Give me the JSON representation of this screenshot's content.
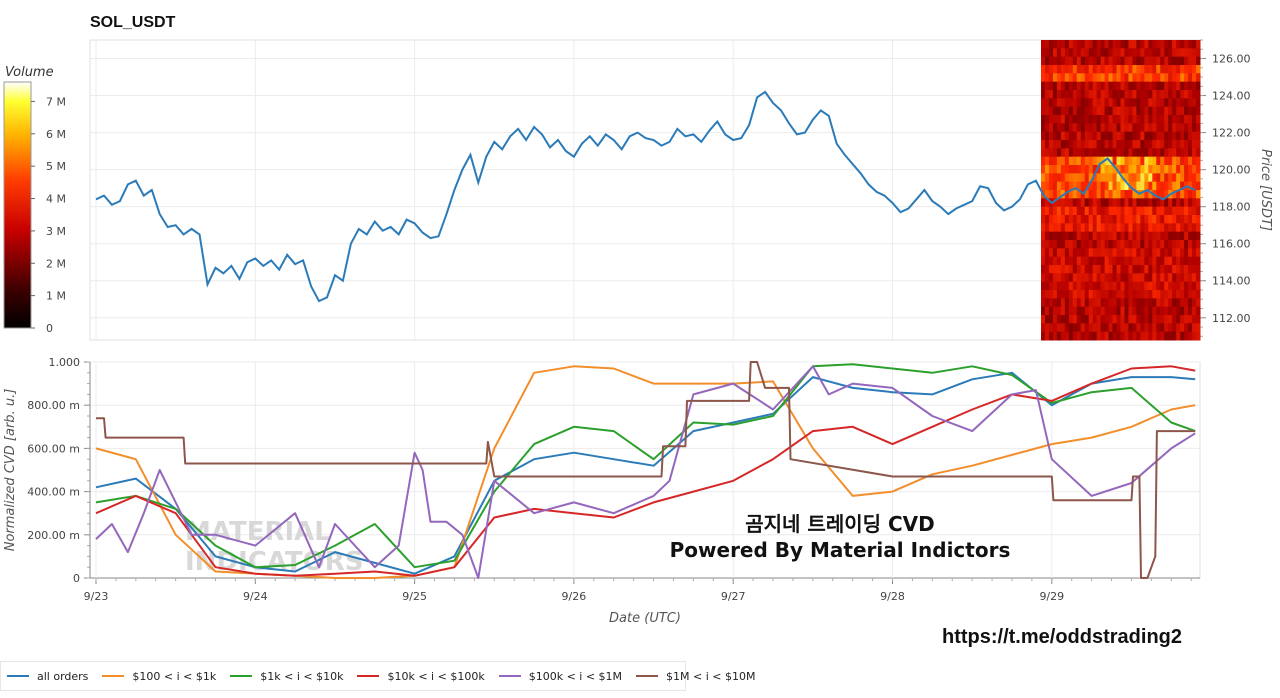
{
  "chart_data": [
    {
      "type": "line",
      "title": "SOL_USDT",
      "y2label": "Price [USDT]",
      "ylim": [
        110.8,
        127.0
      ],
      "yticks": [
        "112.00",
        "114.00",
        "116.00",
        "118.00",
        "120.00",
        "122.00",
        "124.00",
        "126.00"
      ],
      "colorbar": {
        "label": "Volume",
        "ticks": [
          "0",
          "1 M",
          "2 M",
          "3 M",
          "4 M",
          "5 M",
          "6 M",
          "7 M"
        ],
        "range": [
          0,
          7600000
        ]
      },
      "x_days": [
        23,
        30
      ],
      "series": [
        {
          "name": "",
          "color": "#2b7bb9",
          "x": [
            23.0,
            23.05,
            23.1,
            23.15,
            23.2,
            23.25,
            23.3,
            23.35,
            23.4,
            23.45,
            23.5,
            23.55,
            23.6,
            23.65,
            23.7,
            23.75,
            23.8,
            23.85,
            23.9,
            23.95,
            24.0,
            24.05,
            24.1,
            24.15,
            24.2,
            24.25,
            24.3,
            24.35,
            24.4,
            24.45,
            24.5,
            24.55,
            24.6,
            24.65,
            24.7,
            24.75,
            24.8,
            24.85,
            24.9,
            24.95,
            25.0,
            25.05,
            25.1,
            25.15,
            25.2,
            25.25,
            25.3,
            25.35,
            25.4,
            25.45,
            25.5,
            25.55,
            25.6,
            25.65,
            25.7,
            25.75,
            25.8,
            25.85,
            25.9,
            25.95,
            26.0,
            26.05,
            26.1,
            26.15,
            26.2,
            26.25,
            26.3,
            26.35,
            26.4,
            26.45,
            26.5,
            26.55,
            26.6,
            26.65,
            26.7,
            26.75,
            26.8,
            26.85,
            26.9,
            26.95,
            27.0,
            27.05,
            27.1,
            27.15,
            27.2,
            27.25,
            27.3,
            27.35,
            27.4,
            27.45,
            27.5,
            27.55,
            27.6,
            27.65,
            27.7,
            27.75,
            27.8,
            27.85,
            27.9,
            27.95,
            28.0,
            28.05,
            28.1,
            28.15,
            28.2,
            28.25,
            28.3,
            28.35,
            28.4,
            28.45,
            28.5,
            28.55,
            28.6,
            28.65,
            28.7,
            28.75,
            28.8,
            28.85,
            28.9,
            28.95,
            29.0,
            29.05,
            29.1,
            29.15,
            29.2,
            29.25,
            29.3,
            29.35,
            29.4,
            29.45,
            29.5,
            29.55,
            29.6,
            29.65,
            29.7,
            29.75,
            29.8,
            29.85,
            29.9
          ],
          "y": [
            118.4,
            118.6,
            118.1,
            118.3,
            119.2,
            119.4,
            118.6,
            118.9,
            117.6,
            116.9,
            117.0,
            116.5,
            116.8,
            116.5,
            113.8,
            114.7,
            114.4,
            114.8,
            114.1,
            115.0,
            115.2,
            114.8,
            115.1,
            114.6,
            115.4,
            114.9,
            115.1,
            113.7,
            112.9,
            113.1,
            114.3,
            114.0,
            116.0,
            116.8,
            116.5,
            117.2,
            116.7,
            116.9,
            116.5,
            117.3,
            117.1,
            116.6,
            116.3,
            116.4,
            117.6,
            118.9,
            120.0,
            120.8,
            119.3,
            120.7,
            121.5,
            121.1,
            121.8,
            122.2,
            121.6,
            122.3,
            121.9,
            121.2,
            121.6,
            121.0,
            120.7,
            121.4,
            121.8,
            121.3,
            121.9,
            121.6,
            121.1,
            121.8,
            122.0,
            121.7,
            121.6,
            121.3,
            121.5,
            122.2,
            121.8,
            121.9,
            121.5,
            122.1,
            122.6,
            121.9,
            121.6,
            121.7,
            122.4,
            123.9,
            124.2,
            123.6,
            123.2,
            122.5,
            121.9,
            122.0,
            122.7,
            123.2,
            122.9,
            121.4,
            120.8,
            120.3,
            119.8,
            119.2,
            118.8,
            118.6,
            118.2,
            117.7,
            117.9,
            118.4,
            118.9,
            118.3,
            118.0,
            117.6,
            117.9,
            118.1,
            118.3,
            119.1,
            119.0,
            118.2,
            117.8,
            118.0,
            118.4,
            119.2,
            119.4,
            118.6,
            118.2,
            118.5,
            118.8,
            119.0,
            118.7,
            119.4,
            120.3,
            120.6,
            120.1,
            119.5,
            119.0,
            118.7,
            118.9,
            118.6,
            118.4,
            118.7,
            118.9,
            119.1,
            118.9
          ]
        }
      ]
    },
    {
      "type": "line",
      "xlabel": "Date (UTC)",
      "ylabel": "Normalized CVD [arb. u.]",
      "ylim": [
        0,
        1.0
      ],
      "yticks": [
        "0",
        "200.00 m",
        "400.00 m",
        "600.00 m",
        "800.00 m",
        "1.000"
      ],
      "xticks": [
        "9/23",
        "9/24",
        "9/25",
        "9/26",
        "9/27",
        "9/28",
        "9/29"
      ],
      "series": [
        {
          "name": "all orders",
          "color": "#2b7bb9",
          "x": [
            23.0,
            23.25,
            23.5,
            23.75,
            24.0,
            24.25,
            24.5,
            24.75,
            25.0,
            25.25,
            25.5,
            25.75,
            26.0,
            26.25,
            26.5,
            26.75,
            27.0,
            27.25,
            27.5,
            27.75,
            28.0,
            28.25,
            28.5,
            28.75,
            29.0,
            29.25,
            29.5,
            29.75,
            29.9
          ],
          "y": [
            0.42,
            0.46,
            0.32,
            0.1,
            0.05,
            0.03,
            0.12,
            0.07,
            0.02,
            0.1,
            0.45,
            0.55,
            0.58,
            0.55,
            0.52,
            0.68,
            0.72,
            0.76,
            0.93,
            0.88,
            0.86,
            0.85,
            0.92,
            0.95,
            0.8,
            0.9,
            0.93,
            0.93,
            0.92
          ]
        },
        {
          "name": "$100 < i < $1k",
          "color": "#f28e2b",
          "x": [
            23.0,
            23.25,
            23.5,
            23.75,
            24.0,
            24.25,
            24.5,
            24.75,
            25.0,
            25.25,
            25.5,
            25.75,
            26.0,
            26.25,
            26.5,
            26.75,
            27.0,
            27.25,
            27.5,
            27.75,
            28.0,
            28.25,
            28.5,
            28.75,
            29.0,
            29.25,
            29.5,
            29.75,
            29.9
          ],
          "y": [
            0.6,
            0.55,
            0.2,
            0.03,
            0.02,
            0.01,
            0.0,
            0.0,
            0.01,
            0.05,
            0.6,
            0.95,
            0.98,
            0.97,
            0.9,
            0.9,
            0.9,
            0.91,
            0.6,
            0.38,
            0.4,
            0.48,
            0.52,
            0.57,
            0.62,
            0.65,
            0.7,
            0.78,
            0.8
          ]
        },
        {
          "name": "$1k < i < $10k",
          "color": "#2ca02c",
          "x": [
            23.0,
            23.25,
            23.5,
            23.75,
            24.0,
            24.25,
            24.5,
            24.75,
            25.0,
            25.25,
            25.5,
            25.75,
            26.0,
            26.25,
            26.5,
            26.75,
            27.0,
            27.25,
            27.5,
            27.75,
            28.0,
            28.25,
            28.5,
            28.75,
            29.0,
            29.25,
            29.5,
            29.75,
            29.9
          ],
          "y": [
            0.35,
            0.38,
            0.32,
            0.15,
            0.05,
            0.06,
            0.15,
            0.25,
            0.05,
            0.08,
            0.4,
            0.62,
            0.7,
            0.68,
            0.55,
            0.72,
            0.71,
            0.75,
            0.98,
            0.99,
            0.97,
            0.95,
            0.98,
            0.94,
            0.81,
            0.86,
            0.88,
            0.72,
            0.68
          ]
        },
        {
          "name": "$10k < i < $100k",
          "color": "#d62728",
          "x": [
            23.0,
            23.25,
            23.5,
            23.75,
            24.0,
            24.25,
            24.5,
            24.75,
            25.0,
            25.25,
            25.5,
            25.75,
            26.0,
            26.25,
            26.5,
            26.75,
            27.0,
            27.25,
            27.5,
            27.75,
            28.0,
            28.25,
            28.5,
            28.75,
            29.0,
            29.25,
            29.5,
            29.75,
            29.9
          ],
          "y": [
            0.3,
            0.38,
            0.3,
            0.05,
            0.02,
            0.01,
            0.02,
            0.03,
            0.01,
            0.05,
            0.28,
            0.32,
            0.3,
            0.28,
            0.35,
            0.4,
            0.45,
            0.55,
            0.68,
            0.7,
            0.62,
            0.7,
            0.78,
            0.85,
            0.82,
            0.9,
            0.97,
            0.98,
            0.96
          ]
        },
        {
          "name": "$100k < i < $1M",
          "color": "#9467bd",
          "x": [
            23.0,
            23.1,
            23.2,
            23.3,
            23.4,
            23.5,
            23.6,
            23.75,
            24.0,
            24.25,
            24.4,
            24.5,
            24.75,
            24.9,
            25.0,
            25.05,
            25.1,
            25.2,
            25.3,
            25.4,
            25.5,
            25.75,
            26.0,
            26.25,
            26.5,
            26.6,
            26.75,
            27.0,
            27.25,
            27.5,
            27.6,
            27.75,
            28.0,
            28.25,
            28.5,
            28.75,
            28.9,
            29.0,
            29.25,
            29.5,
            29.75,
            29.9
          ],
          "y": [
            0.18,
            0.25,
            0.12,
            0.3,
            0.5,
            0.35,
            0.2,
            0.2,
            0.15,
            0.3,
            0.05,
            0.25,
            0.05,
            0.15,
            0.58,
            0.5,
            0.26,
            0.26,
            0.2,
            0.0,
            0.45,
            0.3,
            0.35,
            0.3,
            0.38,
            0.45,
            0.85,
            0.9,
            0.78,
            0.98,
            0.85,
            0.9,
            0.88,
            0.75,
            0.68,
            0.85,
            0.87,
            0.55,
            0.38,
            0.44,
            0.6,
            0.67
          ]
        },
        {
          "name": "$1M < i < $10M",
          "color": "#8c564b",
          "x": [
            23.0,
            23.05,
            23.06,
            23.55,
            23.56,
            25.45,
            25.46,
            25.5,
            25.51,
            26.55,
            26.56,
            26.7,
            26.71,
            27.1,
            27.11,
            27.15,
            27.2,
            27.21,
            27.35,
            27.36,
            28.0,
            28.5,
            29.0,
            29.01,
            29.5,
            29.51,
            29.55,
            29.56,
            29.6,
            29.65,
            29.66,
            29.9
          ],
          "y": [
            0.74,
            0.74,
            0.65,
            0.65,
            0.53,
            0.53,
            0.63,
            0.47,
            0.47,
            0.47,
            0.61,
            0.61,
            0.82,
            0.82,
            1.0,
            1.0,
            0.88,
            0.88,
            0.88,
            0.55,
            0.47,
            0.47,
            0.47,
            0.36,
            0.36,
            0.47,
            0.47,
            0.0,
            0.0,
            0.1,
            0.68,
            0.68
          ]
        }
      ]
    }
  ],
  "watermark": {
    "line1": "곰지네 트레이딩 CVD",
    "line2": "Powered By Material Indictors"
  },
  "telegram_link": "https://t.me/oddstrading2",
  "legend": [
    {
      "label": "all orders",
      "color": "#2b7bb9"
    },
    {
      "label": "$100 < i < $1k",
      "color": "#f28e2b"
    },
    {
      "label": "$1k < i < $10k",
      "color": "#2ca02c"
    },
    {
      "label": "$10k < i < $100k",
      "color": "#d62728"
    },
    {
      "label": "$100k < i < $1M",
      "color": "#9467bd"
    },
    {
      "label": "$1M < i < $10M",
      "color": "#8c564b"
    }
  ]
}
